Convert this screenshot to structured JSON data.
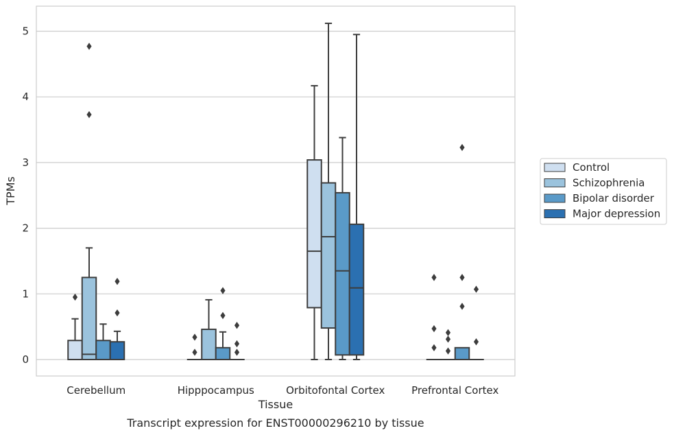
{
  "chart_data": {
    "type": "box",
    "xlabel": "Tissue",
    "ylabel": "TPMs",
    "caption": "Transcript expression for ENST00000296210 by tissue",
    "ylim": [
      -0.25,
      5.38
    ],
    "yticks": [
      "0",
      "1",
      "2",
      "3",
      "4",
      "5"
    ],
    "grid": "horizontal",
    "legend_position": "right",
    "categories": [
      "Cerebellum",
      "Hipppocampus",
      "Orbitofontal Cortex",
      "Prefrontal Cortex"
    ],
    "series": [
      {
        "name": "Control",
        "color": "#cfdff0",
        "boxes": [
          {
            "whislo": 0,
            "q1": 0,
            "med": 0,
            "q3": 0.29,
            "whishi": 0.62,
            "fliers": [
              0.95
            ]
          },
          {
            "whislo": 0,
            "q1": 0,
            "med": 0,
            "q3": 0,
            "whishi": 0,
            "fliers": [
              0.11,
              0.34
            ]
          },
          {
            "whislo": 0,
            "q1": 0.79,
            "med": 1.65,
            "q3": 3.04,
            "whishi": 4.17,
            "fliers": []
          },
          {
            "whislo": 0,
            "q1": 0,
            "med": 0,
            "q3": 0,
            "whishi": 0,
            "fliers": [
              0.18,
              0.47,
              1.25
            ]
          }
        ]
      },
      {
        "name": "Schizophrenia",
        "color": "#9bc3dd",
        "boxes": [
          {
            "whislo": 0,
            "q1": 0,
            "med": 0.08,
            "q3": 1.25,
            "whishi": 1.7,
            "fliers": [
              3.73,
              4.77
            ]
          },
          {
            "whislo": 0,
            "q1": 0,
            "med": 0,
            "q3": 0.46,
            "whishi": 0.91,
            "fliers": []
          },
          {
            "whislo": 0,
            "q1": 0.48,
            "med": 1.87,
            "q3": 2.69,
            "whishi": 5.12,
            "fliers": []
          },
          {
            "whislo": 0,
            "q1": 0,
            "med": 0,
            "q3": 0,
            "whishi": 0,
            "fliers": [
              0.13,
              0.31,
              0.41
            ]
          }
        ]
      },
      {
        "name": "Bipolar disorder",
        "color": "#5a9ac8",
        "boxes": [
          {
            "whislo": 0,
            "q1": 0,
            "med": 0,
            "q3": 0.29,
            "whishi": 0.54,
            "fliers": []
          },
          {
            "whislo": 0,
            "q1": 0,
            "med": 0,
            "q3": 0.18,
            "whishi": 0.42,
            "fliers": [
              0.67,
              1.05
            ]
          },
          {
            "whislo": 0,
            "q1": 0.07,
            "med": 1.35,
            "q3": 2.54,
            "whishi": 3.38,
            "fliers": []
          },
          {
            "whislo": 0,
            "q1": 0,
            "med": 0,
            "q3": 0.18,
            "whishi": 0.18,
            "fliers": [
              0.81,
              1.25,
              3.23
            ]
          }
        ]
      },
      {
        "name": "Major depression",
        "color": "#2b70b1",
        "boxes": [
          {
            "whislo": 0,
            "q1": 0,
            "med": 0,
            "q3": 0.27,
            "whishi": 0.43,
            "fliers": [
              0.71,
              1.19
            ]
          },
          {
            "whislo": 0,
            "q1": 0,
            "med": 0,
            "q3": 0,
            "whishi": 0,
            "fliers": [
              0.11,
              0.24,
              0.52
            ]
          },
          {
            "whislo": 0,
            "q1": 0.07,
            "med": 1.09,
            "q3": 2.06,
            "whishi": 4.95,
            "fliers": []
          },
          {
            "whislo": 0,
            "q1": 0,
            "med": 0,
            "q3": 0,
            "whishi": 0,
            "fliers": [
              0.27,
              1.07
            ]
          }
        ]
      }
    ]
  }
}
